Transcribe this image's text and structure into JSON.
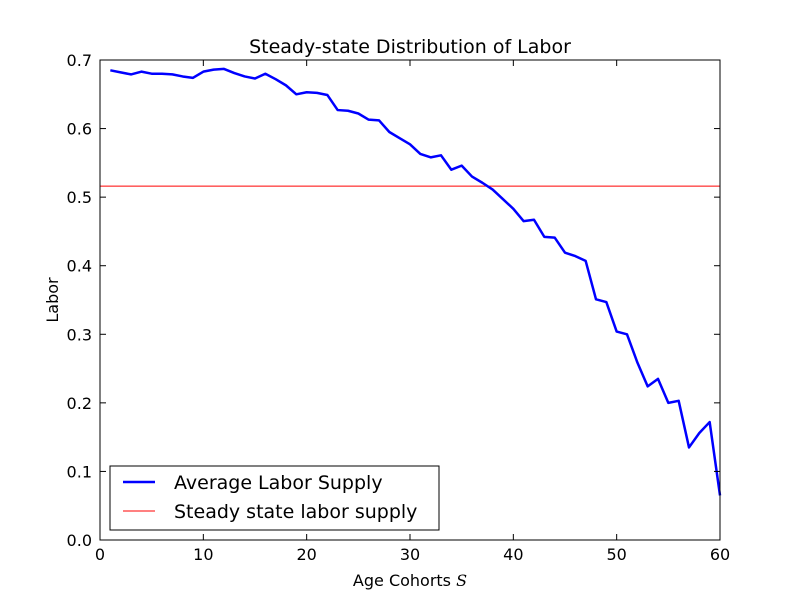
{
  "chart_data": {
    "type": "line",
    "title": "Steady-state Distribution of Labor",
    "xlabel": "Age Cohorts",
    "xlabel_symbol": "S",
    "ylabel": "Labor",
    "xlim": [
      0,
      60
    ],
    "ylim": [
      0.0,
      0.7
    ],
    "xticks": [
      0,
      10,
      20,
      30,
      40,
      50,
      60
    ],
    "yticks": [
      0.0,
      0.1,
      0.2,
      0.3,
      0.4,
      0.5,
      0.6,
      0.7
    ],
    "xtick_labels": [
      "0",
      "10",
      "20",
      "30",
      "40",
      "50",
      "60"
    ],
    "ytick_labels": [
      "0.0",
      "0.1",
      "0.2",
      "0.3",
      "0.4",
      "0.5",
      "0.6",
      "0.7"
    ],
    "grid": false,
    "legend_position": "lower-left",
    "series": [
      {
        "name": "Average Labor Supply",
        "color": "#0000ff",
        "x": [
          1,
          2,
          3,
          4,
          5,
          6,
          7,
          8,
          9,
          10,
          11,
          12,
          13,
          14,
          15,
          16,
          17,
          18,
          19,
          20,
          21,
          22,
          23,
          24,
          25,
          26,
          27,
          28,
          29,
          30,
          31,
          32,
          33,
          34,
          35,
          36,
          37,
          38,
          39,
          40,
          41,
          42,
          43,
          44,
          45,
          46,
          47,
          48,
          49,
          50,
          51,
          52,
          53,
          54,
          55,
          56,
          57,
          58,
          59,
          60
        ],
        "y": [
          0.685,
          0.682,
          0.679,
          0.683,
          0.68,
          0.68,
          0.679,
          0.676,
          0.674,
          0.683,
          0.686,
          0.687,
          0.681,
          0.676,
          0.673,
          0.68,
          0.672,
          0.663,
          0.65,
          0.653,
          0.652,
          0.649,
          0.627,
          0.626,
          0.622,
          0.613,
          0.612,
          0.595,
          0.586,
          0.577,
          0.563,
          0.558,
          0.561,
          0.54,
          0.546,
          0.53,
          0.521,
          0.511,
          0.497,
          0.483,
          0.465,
          0.467,
          0.442,
          0.441,
          0.419,
          0.414,
          0.407,
          0.351,
          0.347,
          0.304,
          0.3,
          0.259,
          0.224,
          0.235,
          0.2,
          0.203,
          0.135,
          0.156,
          0.172,
          0.065
        ]
      },
      {
        "name": "Steady state labor supply",
        "color": "#ff0000",
        "hline": 0.516
      }
    ]
  }
}
